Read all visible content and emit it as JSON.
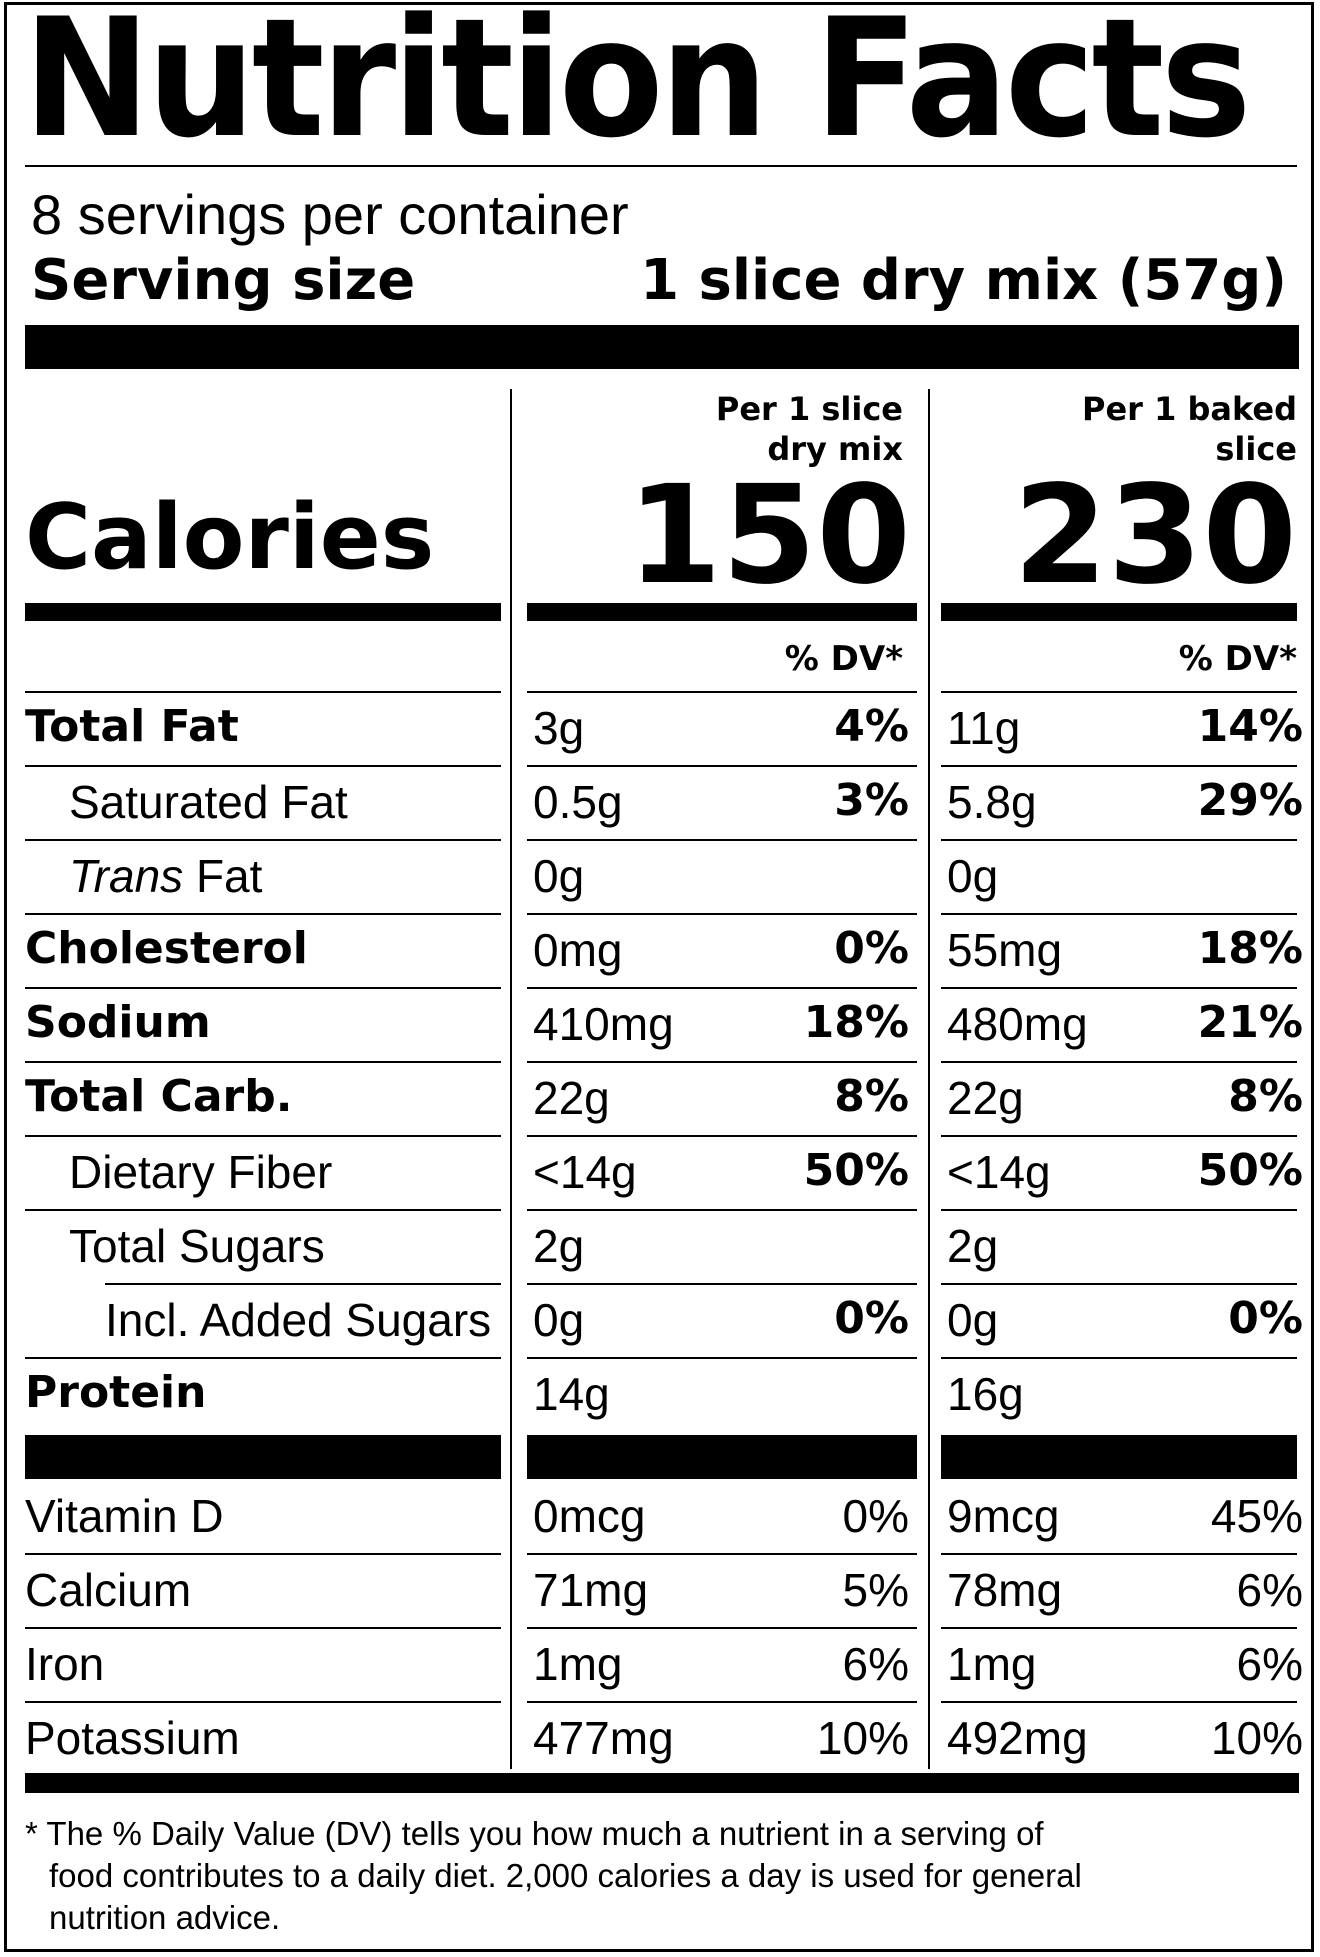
{
  "title": "Nutrition Facts",
  "servings_per_container": "8 servings per container",
  "serving_size": {
    "label": "Serving size",
    "value": "1 slice dry mix (57g)"
  },
  "columns": [
    {
      "heading": "Per 1 slice\ndry mix",
      "calories": "150",
      "dv_header": "% DV*"
    },
    {
      "heading": "Per 1 baked\nslice",
      "calories": "230",
      "dv_header": "% DV*"
    }
  ],
  "calories_label": "Calories",
  "nutrients": [
    {
      "name": "Total Fat",
      "bold": true,
      "indent": 0,
      "col1": {
        "amount": "3g",
        "dv": "4%"
      },
      "col2": {
        "amount": "11g",
        "dv": "14%"
      }
    },
    {
      "name": "Saturated Fat",
      "bold": false,
      "indent": 1,
      "col1": {
        "amount": "0.5g",
        "dv": "3%"
      },
      "col2": {
        "amount": "5.8g",
        "dv": "29%"
      }
    },
    {
      "name_italic": "Trans",
      "name": " Fat",
      "bold": false,
      "indent": 1,
      "col1": {
        "amount": "0g",
        "dv": ""
      },
      "col2": {
        "amount": "0g",
        "dv": ""
      }
    },
    {
      "name": "Cholesterol",
      "bold": true,
      "indent": 0,
      "col1": {
        "amount": "0mg",
        "dv": "0%"
      },
      "col2": {
        "amount": "55mg",
        "dv": "18%"
      }
    },
    {
      "name": "Sodium",
      "bold": true,
      "indent": 0,
      "col1": {
        "amount": "410mg",
        "dv": "18%"
      },
      "col2": {
        "amount": "480mg",
        "dv": "21%"
      }
    },
    {
      "name": "Total Carb.",
      "bold": true,
      "indent": 0,
      "col1": {
        "amount": "22g",
        "dv": "8%"
      },
      "col2": {
        "amount": "22g",
        "dv": "8%"
      }
    },
    {
      "name": "Dietary Fiber",
      "bold": false,
      "indent": 1,
      "col1": {
        "amount": "<14g",
        "dv": "50%"
      },
      "col2": {
        "amount": "<14g",
        "dv": "50%"
      }
    },
    {
      "name": "Total Sugars",
      "bold": false,
      "indent": 1,
      "col1": {
        "amount": "2g",
        "dv": ""
      },
      "col2": {
        "amount": "2g",
        "dv": ""
      }
    },
    {
      "name": "Incl. Added Sugars",
      "bold": false,
      "indent": 2,
      "col1": {
        "amount": "0g",
        "dv": "0%"
      },
      "col2": {
        "amount": "0g",
        "dv": "0%"
      }
    },
    {
      "name": "Protein",
      "bold": true,
      "indent": 0,
      "col1": {
        "amount": "14g",
        "dv": ""
      },
      "col2": {
        "amount": "16g",
        "dv": ""
      }
    }
  ],
  "vitamins": [
    {
      "name": "Vitamin D",
      "col1": {
        "amount": "0mcg",
        "dv": "0%"
      },
      "col2": {
        "amount": "9mcg",
        "dv": "45%"
      }
    },
    {
      "name": "Calcium",
      "col1": {
        "amount": "71mg",
        "dv": "5%"
      },
      "col2": {
        "amount": "78mg",
        "dv": "6%"
      }
    },
    {
      "name": "Iron",
      "col1": {
        "amount": "1mg",
        "dv": "6%"
      },
      "col2": {
        "amount": "1mg",
        "dv": "6%"
      }
    },
    {
      "name": "Potassium",
      "col1": {
        "amount": "477mg",
        "dv": "10%"
      },
      "col2": {
        "amount": "492mg",
        "dv": "10%"
      }
    }
  ],
  "footnote": {
    "line1": "* The % Daily Value (DV) tells you how much a nutrient in a serving of",
    "line2": "food contributes to a daily diet. 2,000 calories a day is used for general",
    "line3": "nutrition advice."
  }
}
